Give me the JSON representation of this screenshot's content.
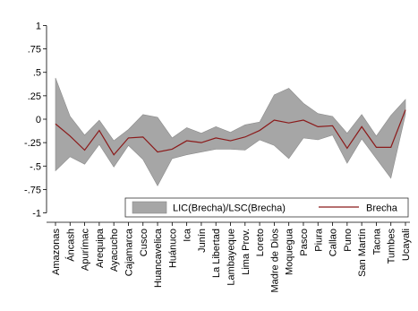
{
  "chart_data": {
    "type": "line",
    "title": "",
    "xlabel": "",
    "ylabel": "",
    "ylim": [
      -1.1,
      1.1
    ],
    "yticks": [
      {
        "value": 1,
        "label": "1"
      },
      {
        "value": 0.75,
        "label": ".75"
      },
      {
        "value": 0.5,
        "label": ".5"
      },
      {
        "value": 0.25,
        "label": ".25"
      },
      {
        "value": 0,
        "label": "0"
      },
      {
        "value": -0.25,
        "label": "-.25"
      },
      {
        "value": -0.5,
        "label": "-.5"
      },
      {
        "value": -0.75,
        "label": "-.75"
      },
      {
        "value": -1,
        "label": "-1"
      }
    ],
    "grid": false,
    "legend": {
      "placement": "bottom-right-inside"
    },
    "categories": [
      "Amazonas",
      "Áncash",
      "Apurímac",
      "Arequipa",
      "Ayacucho",
      "Cajamarca",
      "Cusco",
      "Huancavelica",
      "Huánuco",
      "Ica",
      "Junín",
      "La Libertad",
      "Lambayeque",
      "Lima Prov.",
      "Loreto",
      "Madre de Dios",
      "Moquegua",
      "Pasco",
      "Piura",
      "Callao",
      "Puno",
      "San Martín",
      "Tacna",
      "Tumbes",
      "Ucayali"
    ],
    "series": [
      {
        "name": "Brecha",
        "kind": "line",
        "color": "#8b1a1a",
        "values": [
          -0.05,
          -0.18,
          -0.33,
          -0.12,
          -0.38,
          -0.2,
          -0.19,
          -0.35,
          -0.32,
          -0.23,
          -0.25,
          -0.2,
          -0.23,
          -0.19,
          -0.12,
          -0.01,
          -0.04,
          -0.01,
          -0.08,
          -0.07,
          -0.31,
          -0.08,
          -0.3,
          -0.3,
          0.1
        ]
      },
      {
        "name": "LIC(Brecha)/LSC(Brecha)",
        "kind": "band",
        "color": "#a6a6a6",
        "lower": [
          -0.55,
          -0.4,
          -0.48,
          -0.27,
          -0.51,
          -0.28,
          -0.43,
          -0.71,
          -0.42,
          -0.38,
          -0.35,
          -0.32,
          -0.32,
          -0.33,
          -0.22,
          -0.28,
          -0.42,
          -0.2,
          -0.22,
          -0.17,
          -0.47,
          -0.21,
          -0.42,
          -0.63,
          0.05
        ],
        "upper": [
          0.44,
          0.03,
          -0.17,
          -0.01,
          -0.23,
          -0.11,
          0.05,
          0.02,
          -0.2,
          -0.09,
          -0.15,
          -0.08,
          -0.14,
          -0.06,
          -0.03,
          0.26,
          0.33,
          0.17,
          0.06,
          0.03,
          -0.15,
          0.05,
          -0.18,
          0.04,
          0.21
        ]
      }
    ]
  }
}
